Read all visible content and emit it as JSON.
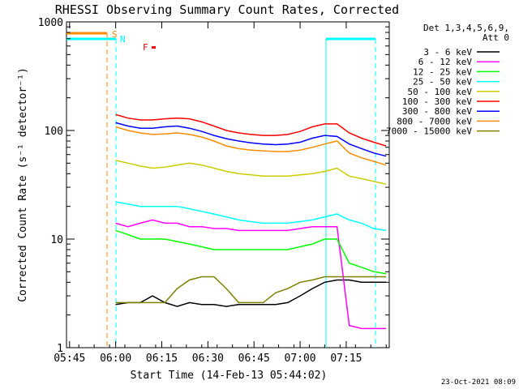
{
  "chart_data": {
    "type": "line",
    "title": "RHESSI Observing Summary Count Rates, Corrected",
    "xlabel": "Start Time (14-Feb-13 05:44:02)",
    "ylabel": "Corrected Count Rate (s⁻¹ detector⁻¹)",
    "y_scale": "log",
    "ylim": [
      1,
      1000
    ],
    "xlim_minutes_after_0544": [
      0,
      105
    ],
    "x_ticks": [
      "05:45",
      "06:00",
      "06:15",
      "06:30",
      "06:45",
      "07:00",
      "07:15"
    ],
    "y_ticks": [
      "1",
      "10",
      "100",
      "1000"
    ],
    "legend_header": [
      "Det 1,3,4,5,6,9,",
      "Att 0"
    ],
    "legend_position": "top-right",
    "annotations": {
      "saa": "S",
      "night": "N",
      "flare": "F"
    },
    "timestamp": "23-Oct-2021 08:09",
    "x_minutes_after_0544": [
      16,
      20,
      24,
      28,
      32,
      36,
      40,
      44,
      48,
      52,
      56,
      60,
      64,
      68,
      72,
      76,
      80,
      84,
      88,
      92,
      96,
      100,
      104
    ],
    "series": [
      {
        "name": "3 - 6 keV",
        "color": "#000000",
        "values": [
          2.5,
          2.6,
          2.6,
          3,
          2.6,
          2.4,
          2.6,
          2.5,
          2.5,
          2.4,
          2.5,
          2.5,
          2.5,
          2.5,
          2.6,
          3,
          3.5,
          4,
          4.2,
          4.2,
          4.0,
          4.0,
          4.0
        ]
      },
      {
        "name": "6 - 12 keV",
        "color": "#ff00ff",
        "values": [
          14,
          13,
          14,
          15,
          14,
          14,
          13,
          13,
          12.5,
          12.5,
          12,
          12,
          12,
          12,
          12,
          12.5,
          13,
          13,
          13,
          1.6,
          1.5,
          1.5,
          1.5
        ]
      },
      {
        "name": "12 - 25 keV",
        "color": "#00ff00",
        "values": [
          12,
          11,
          10,
          10,
          10,
          9.5,
          9,
          8.5,
          8,
          8,
          8,
          8,
          8,
          8,
          8,
          8.5,
          9,
          10,
          10,
          6,
          5.5,
          5,
          4.8
        ]
      },
      {
        "name": "25 - 50 keV",
        "color": "#00ffff",
        "values": [
          22,
          21,
          20,
          20,
          20,
          20,
          19,
          18,
          17,
          16,
          15,
          14.5,
          14,
          14,
          14,
          14.5,
          15,
          16,
          17,
          15,
          14,
          12.5,
          12
        ]
      },
      {
        "name": "50 - 100 keV",
        "color": "#cccc00",
        "values": [
          53,
          50,
          47,
          45,
          46,
          48,
          50,
          48,
          45,
          42,
          40,
          39,
          38,
          38,
          38,
          39,
          40,
          42,
          45,
          38,
          36,
          34,
          32
        ]
      },
      {
        "name": "100 - 300 keV",
        "color": "#ff0000",
        "values": [
          140,
          130,
          125,
          125,
          128,
          130,
          128,
          120,
          110,
          100,
          95,
          92,
          90,
          90,
          92,
          98,
          108,
          115,
          115,
          95,
          85,
          78,
          72
        ]
      },
      {
        "name": "300 - 800 keV",
        "color": "#0000ff",
        "values": [
          118,
          110,
          105,
          105,
          108,
          110,
          105,
          98,
          90,
          84,
          80,
          77,
          75,
          74,
          75,
          78,
          85,
          90,
          88,
          75,
          68,
          62,
          58
        ]
      },
      {
        "name": "800 - 7000 keV",
        "color": "#ff8c00",
        "values": [
          108,
          100,
          95,
          92,
          93,
          95,
          92,
          87,
          80,
          72,
          68,
          66,
          65,
          64,
          64,
          66,
          70,
          75,
          80,
          62,
          56,
          52,
          48
        ]
      },
      {
        "name": "7000 - 15000 keV",
        "color": "#808000",
        "values": [
          2.6,
          2.6,
          2.6,
          2.6,
          2.6,
          3.5,
          4.2,
          4.5,
          4.5,
          3.5,
          2.6,
          2.6,
          2.6,
          3.2,
          3.5,
          4,
          4.2,
          4.5,
          4.5,
          4.5,
          4.5,
          4.5,
          4.5
        ]
      }
    ]
  }
}
